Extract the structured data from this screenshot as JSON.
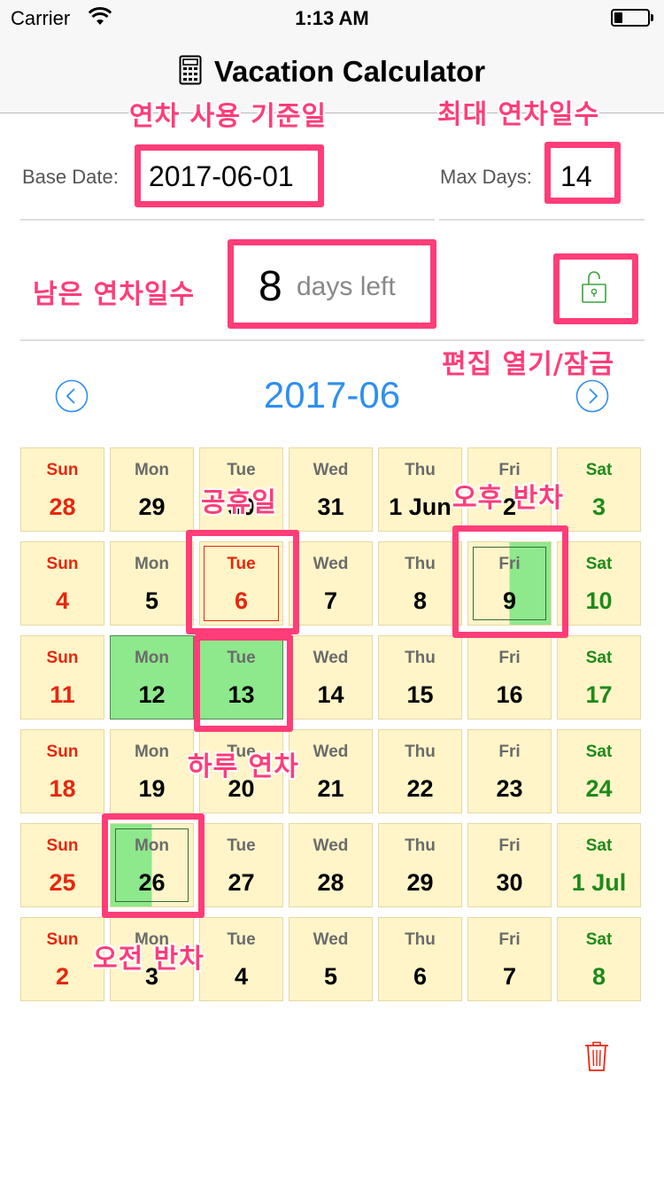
{
  "status_bar": {
    "carrier": "Carrier",
    "time": "1:13 AM"
  },
  "nav": {
    "title": "Vacation Calculator",
    "icon": "calculator-icon"
  },
  "base_date": {
    "label": "Base Date:",
    "value": "2017-06-01"
  },
  "max_days": {
    "label": "Max Days:",
    "value": "14"
  },
  "remaining": {
    "number": "8",
    "suffix": "days left"
  },
  "lock": {
    "icon": "unlock-icon",
    "color": "#3aa33a"
  },
  "month": {
    "title": "2017-06",
    "prev_icon": "chevron-left-circle-icon",
    "next_icon": "chevron-right-circle-icon"
  },
  "calendar": {
    "weeks": [
      [
        {
          "name": "Sun",
          "num": "28",
          "type": "sun"
        },
        {
          "name": "Mon",
          "num": "29",
          "type": "normal"
        },
        {
          "name": "Tue",
          "num": "30",
          "type": "normal"
        },
        {
          "name": "Wed",
          "num": "31",
          "type": "normal"
        },
        {
          "name": "Thu",
          "num": "1 Jun",
          "type": "normal"
        },
        {
          "name": "Fri",
          "num": "2",
          "type": "normal"
        },
        {
          "name": "Sat",
          "num": "3",
          "type": "sat"
        }
      ],
      [
        {
          "name": "Sun",
          "num": "4",
          "type": "sun"
        },
        {
          "name": "Mon",
          "num": "5",
          "type": "normal"
        },
        {
          "name": "Tue",
          "num": "6",
          "type": "holiday"
        },
        {
          "name": "Wed",
          "num": "7",
          "type": "normal"
        },
        {
          "name": "Thu",
          "num": "8",
          "type": "normal"
        },
        {
          "name": "Fri",
          "num": "9",
          "type": "pm-half"
        },
        {
          "name": "Sat",
          "num": "10",
          "type": "sat"
        }
      ],
      [
        {
          "name": "Sun",
          "num": "11",
          "type": "sun"
        },
        {
          "name": "Mon",
          "num": "12",
          "type": "full"
        },
        {
          "name": "Tue",
          "num": "13",
          "type": "full"
        },
        {
          "name": "Wed",
          "num": "14",
          "type": "normal"
        },
        {
          "name": "Thu",
          "num": "15",
          "type": "normal"
        },
        {
          "name": "Fri",
          "num": "16",
          "type": "normal"
        },
        {
          "name": "Sat",
          "num": "17",
          "type": "sat"
        }
      ],
      [
        {
          "name": "Sun",
          "num": "18",
          "type": "sun"
        },
        {
          "name": "Mon",
          "num": "19",
          "type": "normal"
        },
        {
          "name": "Tue",
          "num": "20",
          "type": "normal"
        },
        {
          "name": "Wed",
          "num": "21",
          "type": "normal"
        },
        {
          "name": "Thu",
          "num": "22",
          "type": "normal"
        },
        {
          "name": "Fri",
          "num": "23",
          "type": "normal"
        },
        {
          "name": "Sat",
          "num": "24",
          "type": "sat"
        }
      ],
      [
        {
          "name": "Sun",
          "num": "25",
          "type": "sun"
        },
        {
          "name": "Mon",
          "num": "26",
          "type": "am-half"
        },
        {
          "name": "Tue",
          "num": "27",
          "type": "normal"
        },
        {
          "name": "Wed",
          "num": "28",
          "type": "normal"
        },
        {
          "name": "Thu",
          "num": "29",
          "type": "normal"
        },
        {
          "name": "Fri",
          "num": "30",
          "type": "normal"
        },
        {
          "name": "Sat",
          "num": "1 Jul",
          "type": "sat"
        }
      ],
      [
        {
          "name": "Sun",
          "num": "2",
          "type": "sun"
        },
        {
          "name": "Mon",
          "num": "3",
          "type": "normal"
        },
        {
          "name": "Tue",
          "num": "4",
          "type": "normal"
        },
        {
          "name": "Wed",
          "num": "5",
          "type": "normal"
        },
        {
          "name": "Thu",
          "num": "6",
          "type": "normal"
        },
        {
          "name": "Fri",
          "num": "7",
          "type": "normal"
        },
        {
          "name": "Sat",
          "num": "8",
          "type": "sat"
        }
      ]
    ]
  },
  "trash": {
    "icon": "trash-icon"
  },
  "annotations": {
    "base_date": "연차 사용 기준일",
    "max_days": "최대 연차일수",
    "remaining": "남은 연차일수",
    "lock": "편집 열기/잠금",
    "holiday": "공휴일",
    "pm_half": "오후 반차",
    "full_day": "하루 연차",
    "am_half": "오전 반차"
  },
  "colors": {
    "accent": "#2f8ef0",
    "annotation": "#ff3d78",
    "vacation": "#8ee88c",
    "cell_bg": "#fff5c8",
    "sunday": "#e8260f",
    "saturday": "#1f8a1a"
  }
}
